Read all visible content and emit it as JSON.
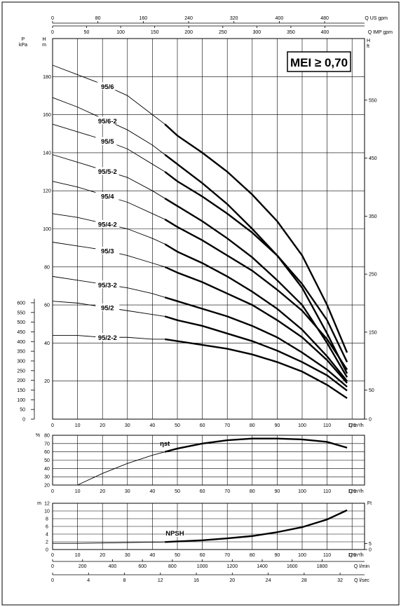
{
  "chart_data": [
    {
      "type": "line",
      "panel": "head",
      "xlabel": "Q m³/h",
      "ylabel_left_outer": "P kPa",
      "ylabel_left_inner": "H m",
      "ylabel_right": "H ft",
      "xlim": [
        0,
        125
      ],
      "ylim": [
        0,
        200
      ],
      "x_ticks": [
        0,
        10,
        20,
        30,
        40,
        50,
        60,
        70,
        80,
        90,
        100,
        110,
        120
      ],
      "h_ticks": [
        0,
        20,
        40,
        60,
        80,
        100,
        120,
        140,
        160,
        180
      ],
      "p_ticks": [
        0,
        50,
        100,
        150,
        200,
        250,
        300,
        350,
        400,
        450,
        500,
        550,
        600
      ],
      "ft_ticks": [
        0,
        50,
        150,
        250,
        350,
        450,
        550
      ],
      "top_axis_us": {
        "label": "Q US gpm",
        "ticks": [
          0,
          80,
          160,
          240,
          320,
          400,
          480
        ]
      },
      "top_axis_imp": {
        "label": "Q IMP gpm",
        "ticks": [
          0,
          50,
          100,
          150,
          200,
          250,
          300,
          350,
          400
        ]
      },
      "badge": "MEI ≥ 0,70",
      "grid": true,
      "series": [
        {
          "name": "95/6",
          "label_x": 22,
          "x": [
            0,
            10,
            20,
            30,
            40,
            45,
            50,
            60,
            70,
            80,
            90,
            100,
            110,
            118
          ],
          "y": [
            186,
            181,
            176,
            170,
            160,
            155,
            149,
            140,
            130,
            118,
            104,
            86,
            60,
            35
          ]
        },
        {
          "name": "95/6-2",
          "label_x": 22,
          "x": [
            0,
            10,
            20,
            30,
            40,
            45,
            50,
            60,
            70,
            80,
            90,
            100,
            110,
            118
          ],
          "y": [
            169,
            164,
            158,
            152,
            144,
            139,
            134,
            124,
            113,
            100,
            86,
            69,
            45,
            24
          ]
        },
        {
          "name": "95/5",
          "label_x": 22,
          "x": [
            0,
            10,
            20,
            30,
            40,
            45,
            50,
            60,
            70,
            80,
            90,
            100,
            110,
            118
          ],
          "y": [
            155,
            151,
            147,
            142,
            134,
            130,
            125,
            117,
            108,
            98,
            86,
            71,
            52,
            30
          ]
        },
        {
          "name": "95/5-2",
          "label_x": 22,
          "x": [
            0,
            10,
            20,
            30,
            40,
            45,
            50,
            60,
            70,
            80,
            90,
            100,
            110,
            118
          ],
          "y": [
            139,
            135,
            131,
            127,
            120,
            116,
            112,
            104,
            95,
            85,
            73,
            60,
            40,
            22
          ]
        },
        {
          "name": "95/4",
          "label_x": 22,
          "x": [
            0,
            10,
            20,
            30,
            40,
            45,
            50,
            60,
            70,
            80,
            90,
            100,
            110,
            118
          ],
          "y": [
            125,
            122,
            118,
            114,
            108,
            105,
            101,
            94,
            86,
            78,
            68,
            57,
            42,
            26
          ]
        },
        {
          "name": "95/4-2",
          "label_x": 22,
          "x": [
            0,
            10,
            20,
            30,
            40,
            45,
            50,
            60,
            70,
            80,
            90,
            100,
            110,
            118
          ],
          "y": [
            108,
            106,
            103,
            100,
            95,
            92,
            88,
            82,
            75,
            67,
            58,
            47,
            33,
            20
          ]
        },
        {
          "name": "95/3",
          "label_x": 22,
          "x": [
            0,
            10,
            20,
            30,
            40,
            45,
            50,
            60,
            70,
            80,
            90,
            100,
            110,
            118
          ],
          "y": [
            93,
            91,
            89,
            86,
            82,
            80,
            77,
            72,
            66,
            60,
            52,
            43,
            31,
            19
          ]
        },
        {
          "name": "95/3-2",
          "label_x": 22,
          "x": [
            0,
            10,
            20,
            30,
            40,
            45,
            50,
            60,
            70,
            80,
            90,
            100,
            110,
            118
          ],
          "y": [
            75,
            73,
            71,
            69,
            66,
            64,
            62,
            58,
            54,
            49,
            43,
            35,
            26,
            17
          ]
        },
        {
          "name": "95/2",
          "label_x": 22,
          "x": [
            0,
            10,
            20,
            30,
            40,
            45,
            50,
            60,
            70,
            80,
            90,
            100,
            110,
            118
          ],
          "y": [
            62,
            61,
            59,
            57,
            55,
            54,
            52,
            49,
            45,
            41,
            36,
            30,
            23,
            15
          ]
        },
        {
          "name": "95/2-2",
          "label_x": 22,
          "x": [
            0,
            10,
            20,
            30,
            40,
            45,
            50,
            60,
            70,
            80,
            90,
            100,
            110,
            118
          ],
          "y": [
            44,
            44,
            43,
            43,
            42,
            42,
            41,
            39,
            37,
            34,
            30,
            25,
            18,
            11
          ]
        }
      ]
    },
    {
      "type": "line",
      "panel": "efficiency",
      "ylabel": "%",
      "xlabel": "Q m³/h",
      "xlim": [
        0,
        125
      ],
      "ylim": [
        20,
        80
      ],
      "y_ticks": [
        20,
        30,
        40,
        50,
        60,
        70,
        80
      ],
      "grid": true,
      "series": [
        {
          "name": "ηst",
          "x": [
            10,
            20,
            30,
            40,
            45,
            50,
            60,
            70,
            80,
            90,
            100,
            110,
            118
          ],
          "y": [
            20,
            34,
            46,
            56,
            60,
            64,
            70,
            74,
            76,
            76,
            75,
            72,
            65
          ]
        }
      ]
    },
    {
      "type": "line",
      "panel": "npsh",
      "ylabel": "m",
      "ylabel_right": "Ft",
      "xlim": [
        0,
        125
      ],
      "ylim": [
        0,
        12
      ],
      "y_ticks": [
        0,
        2,
        4,
        6,
        8,
        10,
        12
      ],
      "ft_ticks": [
        0,
        5
      ],
      "grid": true,
      "series": [
        {
          "name": "NPSH",
          "x": [
            0,
            10,
            20,
            30,
            40,
            45,
            50,
            60,
            70,
            80,
            90,
            100,
            110,
            118
          ],
          "y": [
            1.6,
            1.6,
            1.7,
            1.8,
            1.9,
            1.95,
            2.1,
            2.4,
            2.9,
            3.5,
            4.5,
            5.8,
            7.8,
            10.2
          ]
        }
      ]
    }
  ],
  "bottom_axes": {
    "lmin": {
      "label": "Q l/min",
      "ticks": [
        0,
        200,
        400,
        600,
        800,
        1000,
        1200,
        1400,
        1600,
        1800
      ]
    },
    "lsec": {
      "label": "Q l/sec",
      "ticks": [
        0,
        4,
        8,
        12,
        16,
        20,
        24,
        28,
        32
      ]
    }
  },
  "x_axis_ticks": [
    0,
    10,
    20,
    30,
    40,
    50,
    60,
    70,
    80,
    90,
    100,
    110,
    120
  ]
}
